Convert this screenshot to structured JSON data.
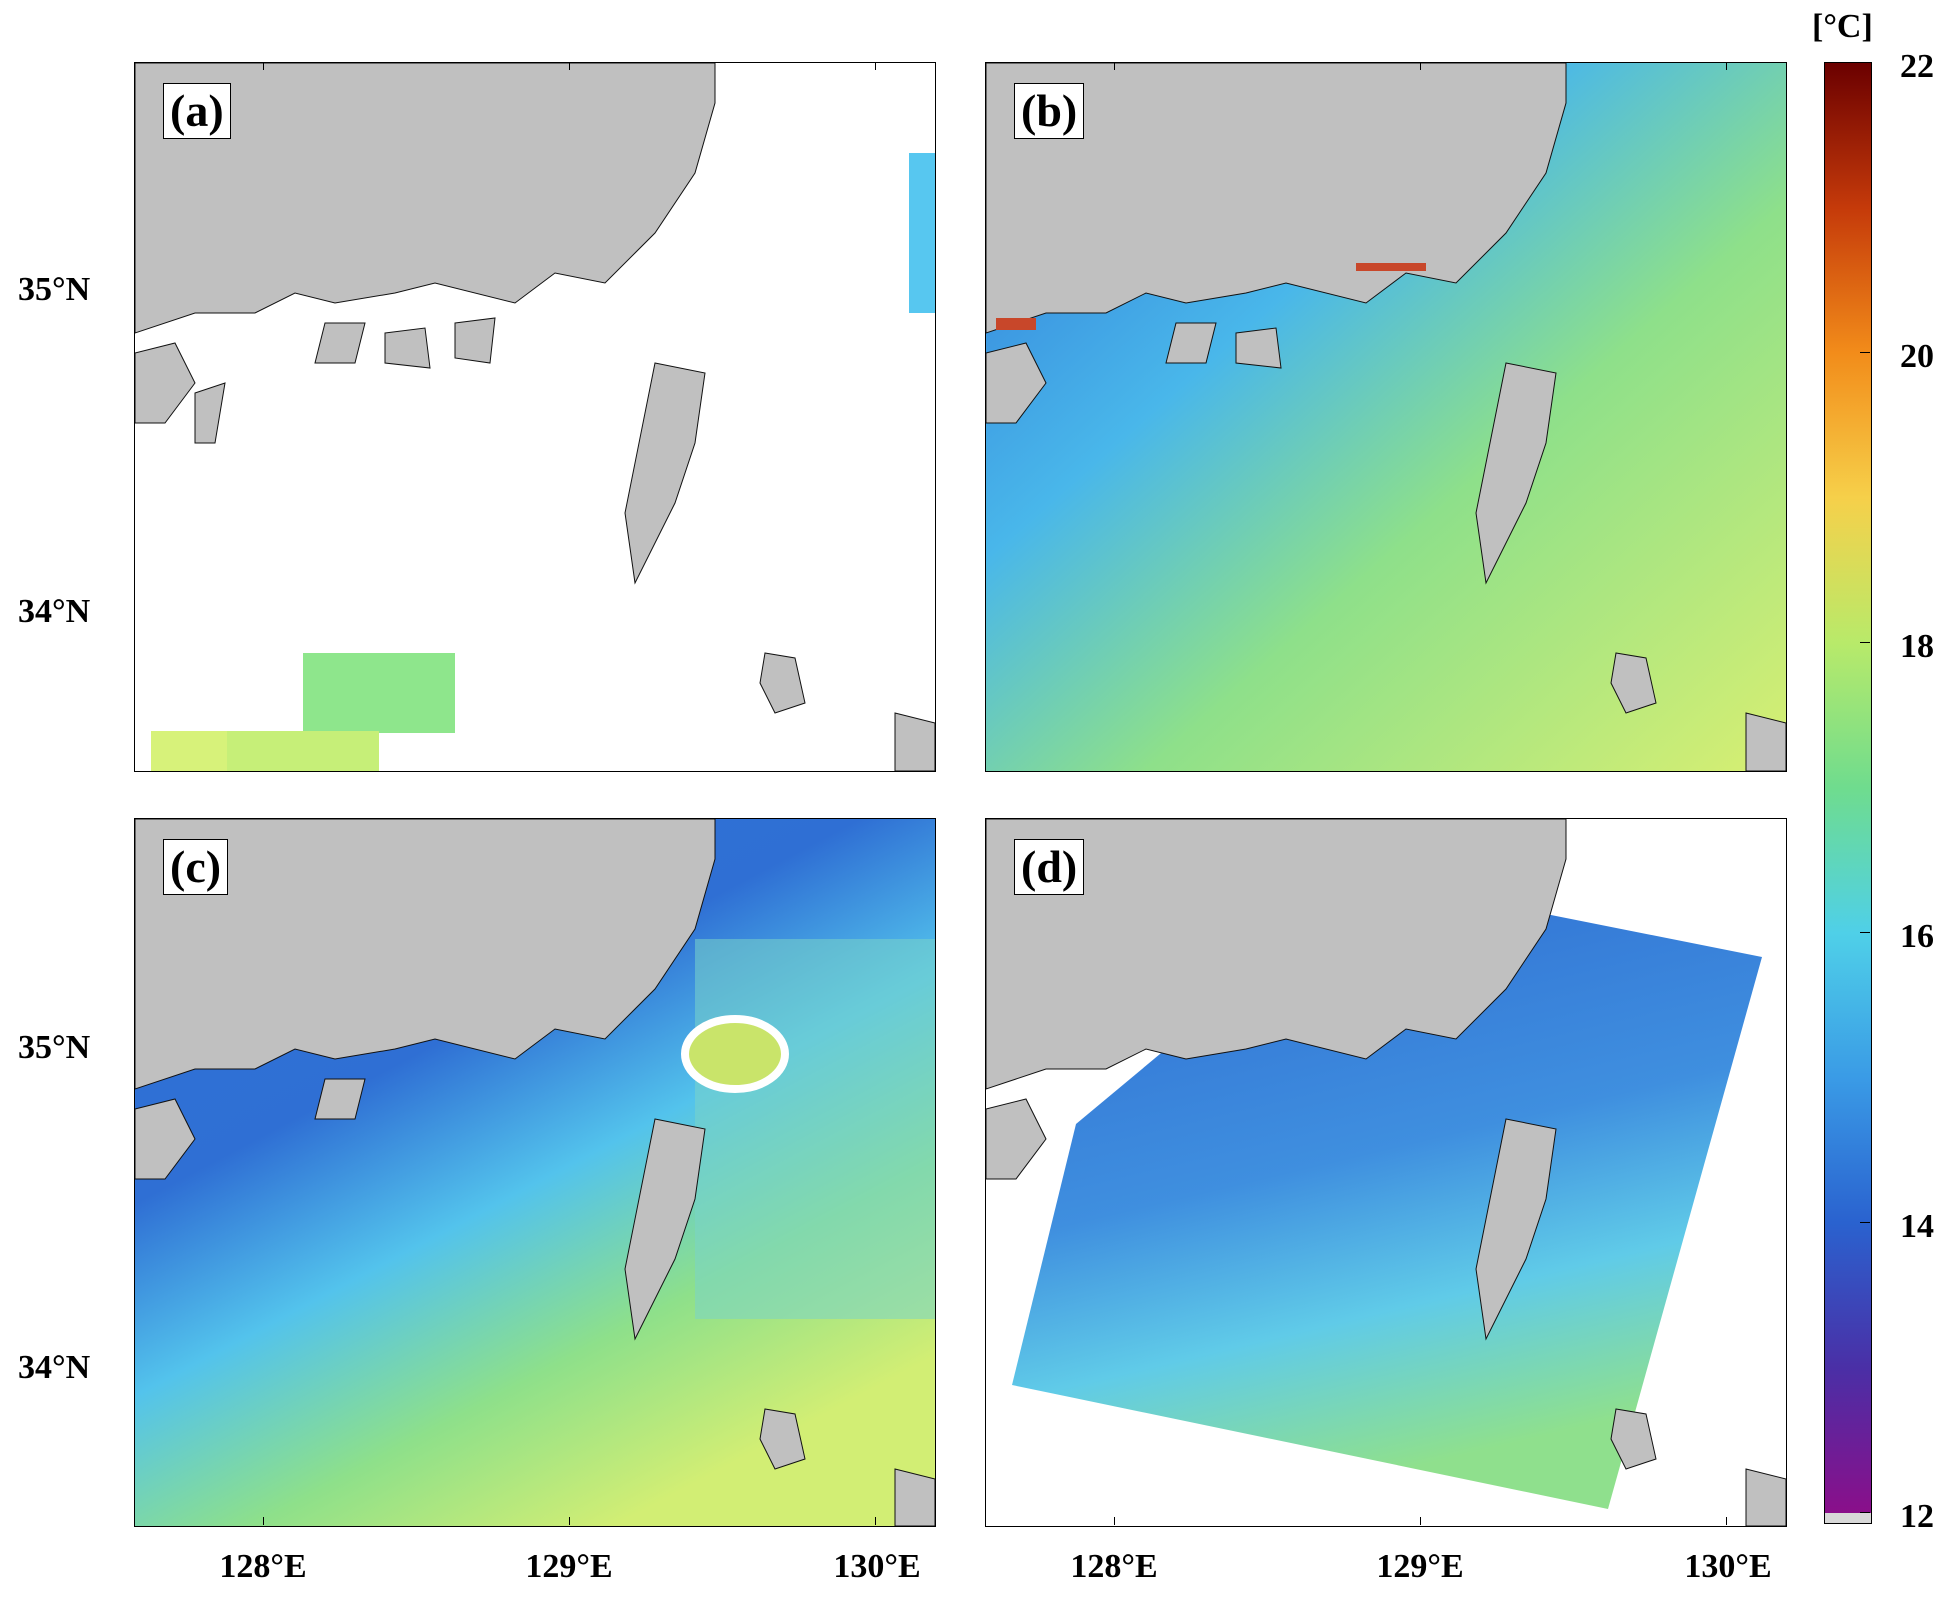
{
  "panels": [
    {
      "id": "a",
      "label": "(a)"
    },
    {
      "id": "b",
      "label": "(b)"
    },
    {
      "id": "c",
      "label": "(c)"
    },
    {
      "id": "d",
      "label": "(d)"
    }
  ],
  "axes": {
    "x_ticks": [
      "128°E",
      "129°E",
      "130°E"
    ],
    "y_ticks": [
      "35°N",
      "34°N"
    ]
  },
  "colorbar": {
    "unit": "[°C]",
    "ticks": [
      "22",
      "20",
      "18",
      "16",
      "14",
      "12"
    ],
    "min": 12,
    "max": 22
  },
  "colors": {
    "land": "#c0c0c0",
    "cold": "#2d6fd6",
    "warm": "#b5e85a"
  }
}
